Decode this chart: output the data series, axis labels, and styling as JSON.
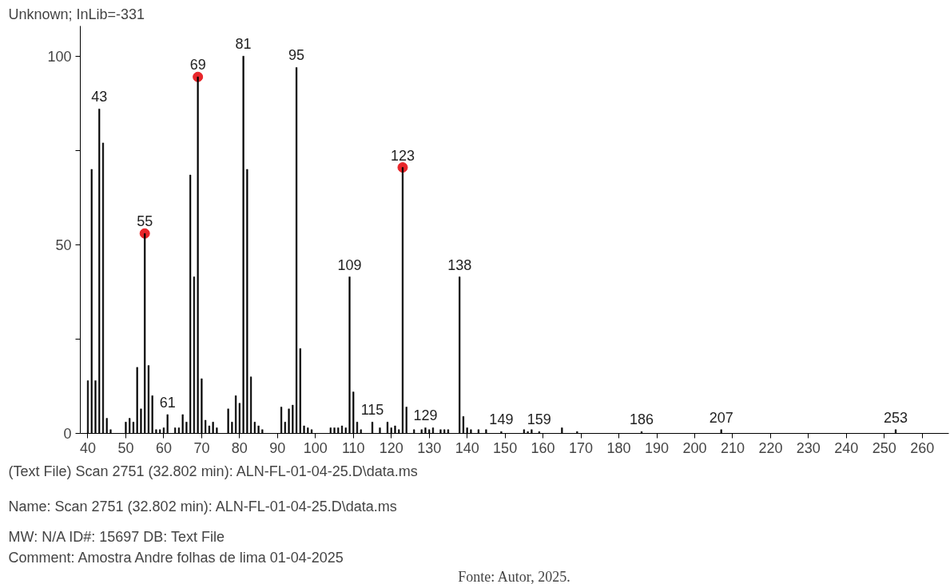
{
  "chart_data": {
    "type": "bar",
    "title": "Unknown; InLib=-331",
    "x": [
      40,
      41,
      42,
      43,
      44,
      45,
      46,
      50,
      51,
      52,
      53,
      54,
      55,
      56,
      57,
      58,
      59,
      60,
      61,
      63,
      64,
      65,
      66,
      67,
      68,
      69,
      70,
      71,
      72,
      73,
      74,
      77,
      78,
      79,
      80,
      81,
      82,
      83,
      84,
      85,
      86,
      91,
      92,
      93,
      94,
      95,
      96,
      97,
      98,
      99,
      104,
      105,
      106,
      107,
      108,
      109,
      110,
      111,
      112,
      115,
      117,
      119,
      120,
      121,
      122,
      123,
      124,
      126,
      128,
      129,
      130,
      131,
      133,
      134,
      135,
      138,
      139,
      140,
      141,
      143,
      145,
      149,
      155,
      156,
      157,
      159,
      165,
      169,
      186,
      207,
      253
    ],
    "series": [
      {
        "color": "#000000",
        "values": [
          14,
          70,
          14,
          86,
          77,
          4,
          1,
          3,
          4,
          3,
          17.5,
          6.5,
          53,
          18,
          10,
          1,
          1,
          1.5,
          5,
          1.5,
          1.5,
          5,
          3,
          68.5,
          41.5,
          94.5,
          14.5,
          3.5,
          2,
          3,
          1.5,
          6.5,
          3,
          10,
          8,
          100,
          70,
          15,
          3,
          2,
          1,
          7,
          3,
          6.5,
          7.5,
          97,
          22.5,
          2,
          1.5,
          1,
          1.5,
          1.5,
          1.5,
          2,
          1.5,
          41.5,
          11,
          3,
          1,
          3,
          1.5,
          3,
          1.5,
          2,
          1,
          70.5,
          7,
          1,
          1,
          1.5,
          1,
          1.5,
          1,
          1,
          1,
          41.5,
          4.5,
          1.5,
          1,
          1,
          1,
          0.5,
          1,
          0.5,
          1,
          0.5,
          1.5,
          0.5,
          0.5,
          1,
          1
        ]
      },
      {
        "type": "scatter",
        "color": "#e8262a",
        "x": [
          55,
          69,
          123
        ],
        "values": [
          53,
          94.5,
          70.5
        ]
      }
    ],
    "marker": "circle",
    "xlim": [
      38,
      267
    ],
    "xticks": [
      40,
      50,
      60,
      70,
      80,
      90,
      100,
      110,
      120,
      130,
      140,
      150,
      160,
      170,
      180,
      190,
      200,
      210,
      220,
      230,
      240,
      250,
      260
    ],
    "ylim": [
      0,
      108
    ],
    "yticks": [
      0,
      {
        "value": 25,
        "label": null
      },
      50,
      {
        "value": 75,
        "label": null
      },
      100
    ],
    "grid": false,
    "annotations": [
      {
        "text": "43",
        "x": 43,
        "y": 86
      },
      {
        "text": "55",
        "x": 55,
        "y": 53
      },
      {
        "text": "61",
        "x": 61,
        "y": 5
      },
      {
        "text": "69",
        "x": 69,
        "y": 94.5
      },
      {
        "text": "81",
        "x": 81,
        "y": 100
      },
      {
        "text": "95",
        "x": 95,
        "y": 97
      },
      {
        "text": "109",
        "x": 109,
        "y": 41.5
      },
      {
        "text": "115",
        "x": 115,
        "y": 3
      },
      {
        "text": "123",
        "x": 123,
        "y": 70.5
      },
      {
        "text": "129",
        "x": 129,
        "y": 1.5
      },
      {
        "text": "138",
        "x": 138,
        "y": 41.5
      },
      {
        "text": "149",
        "x": 149,
        "y": 0.5
      },
      {
        "text": "159",
        "x": 159,
        "y": 0.5
      },
      {
        "text": "186",
        "x": 186,
        "y": 0.5
      },
      {
        "text": "207",
        "x": 207,
        "y": 1
      },
      {
        "text": "253",
        "x": 253,
        "y": 1
      },
      "(Text File) Scan 2751 (32.802 min): ALN-FL-01-04-25.D\\data.ms",
      "Name: Scan 2751 (32.802 min): ALN-FL-01-04-25.D\\data.ms",
      "MW:  N/A ID#: 15697 DB: Text File",
      "Comment: Amostra Andre folhas de lima 01-04-2025",
      "Fonte: Autor, 2025."
    ]
  }
}
